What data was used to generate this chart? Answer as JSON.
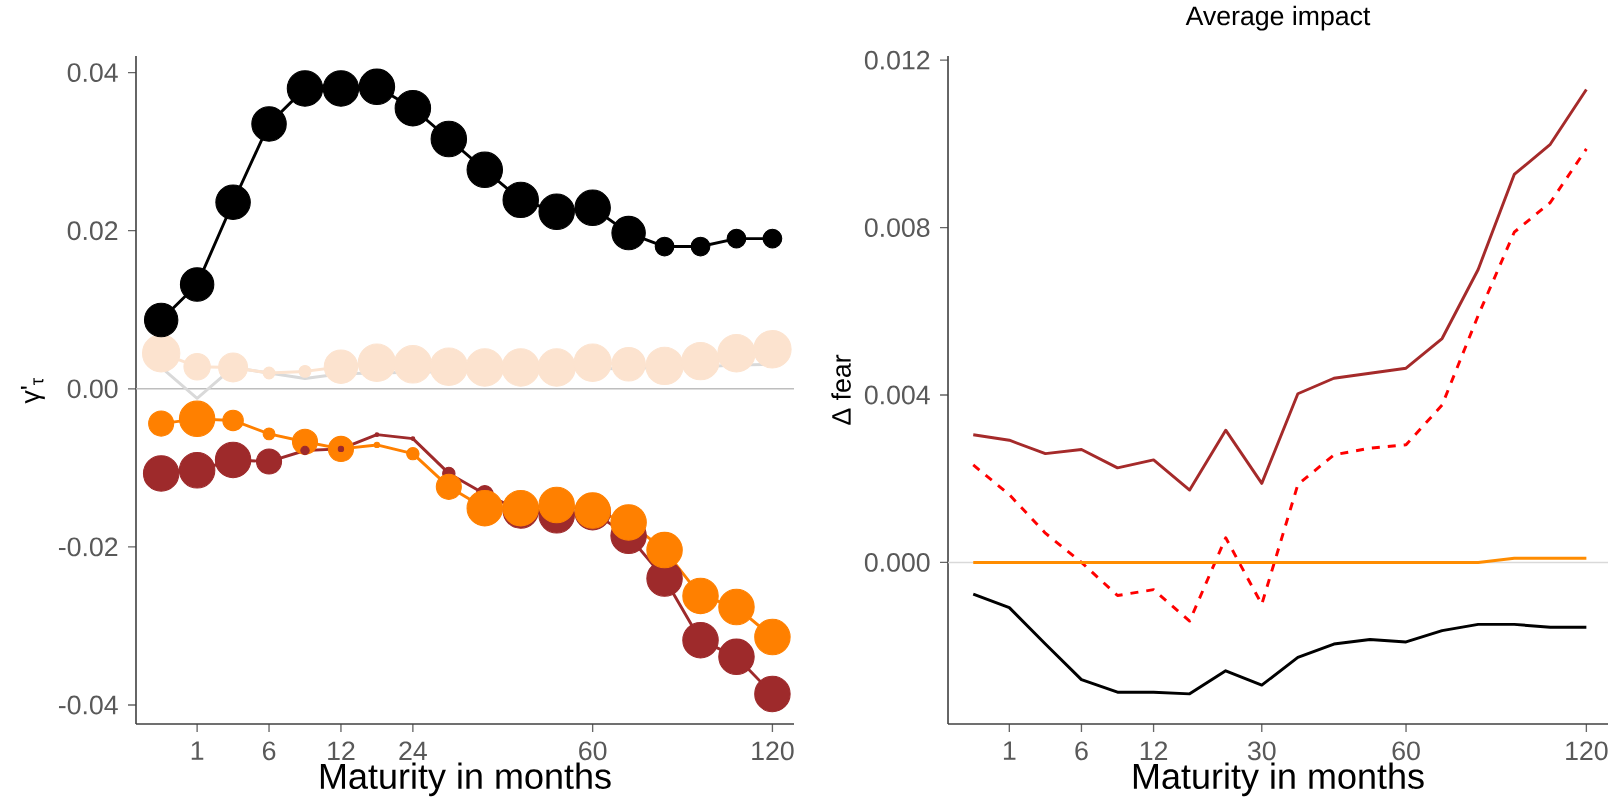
{
  "chart_data": [
    {
      "type": "line",
      "xlabel": "Maturity in months",
      "ylabel": "γ'$_{τ}$",
      "categories": [
        null,
        "1",
        null,
        "6",
        null,
        "12",
        null,
        "24",
        null,
        null,
        null,
        null,
        "60",
        null,
        null,
        null,
        null,
        "120"
      ],
      "ylim": [
        -0.0424,
        0.0421
      ],
      "yticks": [
        -0.04,
        -0.02,
        {
          "value": 0,
          "label": "0.00"
        },
        0.02,
        0.04
      ],
      "ref_lines": [
        {
          "axis": "y",
          "value": 0,
          "color": "#bebebe"
        }
      ],
      "series": [
        {
          "color": "#d9d9d9",
          "values": [
            0.0027,
            -0.0012,
            0.0027,
            0.002,
            0.0013,
            0.0019,
            0.002,
            0.0021,
            0.0022,
            0.0022,
            0.0023,
            0.0024,
            0.0025,
            0.0026,
            0.0027,
            0.0028,
            0.003,
            0.0031
          ]
        },
        {
          "color": "#fce3cf",
          "values": [
            0.0045,
            0.0028,
            0.0027,
            0.002,
            0.0022,
            0.0028,
            0.0033,
            0.0031,
            0.0028,
            0.0027,
            0.0027,
            0.0027,
            0.0033,
            0.0031,
            0.0029,
            0.0035,
            0.0045,
            0.005
          ]
        },
        {
          "type": "bubble",
          "color": "#fce3cf",
          "values": [
            0.0045,
            0.0028,
            0.0027,
            0.002,
            0.0022,
            0.0028,
            0.0033,
            0.0031,
            0.0028,
            0.0027,
            0.0027,
            0.0027,
            0.0033,
            0.0031,
            0.0029,
            0.0035,
            0.0045,
            0.005
          ],
          "sizes": [
            1,
            0.5,
            0.6,
            0.1,
            0.1,
            0.8,
            1,
            1,
            1,
            1,
            1,
            1,
            1,
            0.8,
            1,
            1,
            1,
            1
          ]
        },
        {
          "color": "#000000",
          "values": [
            0.0087,
            0.0132,
            0.0236,
            0.0335,
            0.038,
            0.038,
            0.0382,
            0.0355,
            0.0316,
            0.0277,
            0.0239,
            0.0224,
            0.0229,
            0.0197,
            0.018,
            0.018,
            0.019,
            0.019
          ]
        },
        {
          "type": "bubble",
          "color": "#000000",
          "values": [
            0.0087,
            0.0132,
            0.0236,
            0.0335,
            0.038,
            0.038,
            0.0382,
            0.0355,
            0.0316,
            0.0277,
            0.0239,
            0.0224,
            0.0229,
            0.0197,
            0.018,
            0.018,
            0.019,
            0.019
          ],
          "sizes": [
            0.8,
            0.8,
            0.85,
            0.85,
            0.9,
            0.9,
            0.9,
            0.9,
            0.9,
            0.9,
            0.9,
            0.9,
            0.9,
            0.8,
            0.25,
            0.25,
            0.25,
            0.25
          ]
        },
        {
          "color": "#9e2a2b",
          "values": [
            -0.0107,
            -0.0103,
            -0.009,
            -0.0092,
            -0.0078,
            -0.0076,
            -0.0058,
            -0.0063,
            -0.0107,
            -0.0133,
            -0.0154,
            -0.016,
            -0.0156,
            -0.0186,
            -0.024,
            -0.0318,
            -0.0339,
            -0.0386
          ]
        },
        {
          "type": "bubble",
          "color": "#9e2a2b",
          "values": [
            -0.0107,
            -0.0103,
            -0.009,
            -0.0092,
            -0.0078,
            -0.0076,
            -0.0058,
            -0.0063,
            -0.0107,
            -0.0133,
            -0.0154,
            -0.016,
            -0.0156,
            -0.0186,
            -0.024,
            -0.0318,
            -0.0339,
            -0.0386
          ],
          "sizes": [
            0.9,
            0.9,
            0.9,
            0.45,
            0.05,
            0.02,
            0.01,
            0.01,
            0.11,
            0.2,
            0.9,
            0.9,
            0.9,
            0.9,
            0.9,
            0.9,
            0.9,
            0.9
          ]
        },
        {
          "color": "#ff8000",
          "values": [
            -0.0044,
            -0.0038,
            -0.004,
            -0.0057,
            -0.0067,
            -0.0076,
            -0.0071,
            -0.0082,
            -0.0124,
            -0.0151,
            -0.0151,
            -0.0147,
            -0.0154,
            -0.0169,
            -0.0204,
            -0.0262,
            -0.0276,
            -0.0314
          ]
        },
        {
          "type": "bubble",
          "color": "#ff8000",
          "values": [
            -0.0044,
            -0.0038,
            -0.004,
            -0.0057,
            -0.0067,
            -0.0076,
            -0.0071,
            -0.0082,
            -0.0124,
            -0.0151,
            -0.0151,
            -0.0147,
            -0.0154,
            -0.0169,
            -0.0204,
            -0.0262,
            -0.0276,
            -0.0314
          ],
          "sizes": [
            0.45,
            0.9,
            0.3,
            0.1,
            0.45,
            0.45,
            0.02,
            0.11,
            0.45,
            0.9,
            0.9,
            0.9,
            0.9,
            0.9,
            0.9,
            0.9,
            0.9,
            0.9
          ]
        }
      ]
    },
    {
      "type": "line",
      "title": "Average impact",
      "xlabel": "Maturity in months",
      "ylabel": "Δ fear",
      "categories": [
        null,
        "1",
        null,
        "6",
        null,
        "12",
        null,
        null,
        "30",
        null,
        null,
        null,
        "60",
        null,
        null,
        null,
        null,
        "120"
      ],
      "ylim": [
        -0.00386,
        0.0121
      ],
      "yticks": [
        {
          "value": 0,
          "label": "0.000"
        },
        0.004,
        0.008,
        0.012
      ],
      "ref_lines": [
        {
          "axis": "y",
          "value": 0,
          "color": "#d9d9d9"
        }
      ],
      "series": [
        {
          "line_style": "solid",
          "color": "#a52a2a",
          "values": [
            0.00305,
            0.00292,
            0.0026,
            0.0027,
            0.00226,
            0.00245,
            0.00173,
            0.00316,
            0.00189,
            0.00403,
            0.0044,
            0.00452,
            0.00464,
            0.00535,
            0.007,
            0.00927,
            0.00999,
            0.0113
          ]
        },
        {
          "line_style": "dashed",
          "color": "#ff0000",
          "values": [
            0.00233,
            0.00162,
            0.0007,
            0,
            -0.00079,
            -0.00065,
            -0.0014,
            0.00059,
            -0.001,
            0.00186,
            0.00257,
            0.00273,
            0.00281,
            0.00376,
            0.0059,
            0.00789,
            0.0086,
            0.00988
          ]
        },
        {
          "line_style": "solid",
          "color": "#ff8c00",
          "values": [
            0,
            0,
            0,
            0,
            0,
            0,
            0,
            0,
            0,
            0,
            0,
            0,
            0,
            0,
            0,
            0.0001,
            0.0001,
            0.0001
          ]
        },
        {
          "line_style": "solid",
          "color": "#000000",
          "values": [
            -0.00076,
            -0.00108,
            -0.00195,
            -0.0028,
            -0.0031,
            -0.0031,
            -0.00314,
            -0.00259,
            -0.00293,
            -0.00227,
            -0.00195,
            -0.00184,
            -0.0019,
            -0.00163,
            -0.00148,
            -0.00148,
            -0.00155,
            -0.00155
          ]
        }
      ]
    }
  ]
}
